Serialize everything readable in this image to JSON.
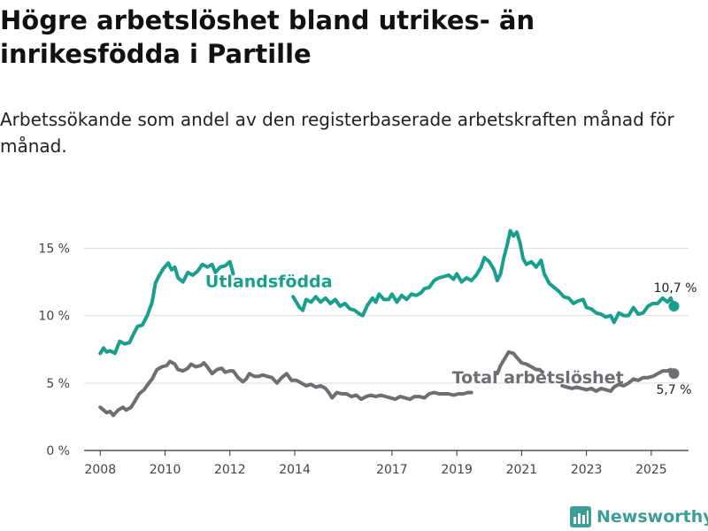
{
  "title": "Högre arbetslöshet bland utrikes- än inrikesfödda i Partille",
  "subtitle": "Arbetssökande som andel av den registerbaserade arbetskraften månad för månad.",
  "brand": {
    "name": "Newsworthy",
    "logo_icon": "bar-chart-logo-icon"
  },
  "colors": {
    "accent": "#1a9e8e",
    "secondary": "#6e6e73",
    "grid": "#dddddd",
    "axis": "#333333"
  },
  "chart_data": {
    "type": "line",
    "title": "Högre arbetslöshet bland utrikes- än inrikesfödda i Partille",
    "xlabel": "",
    "ylabel": "",
    "xlim": [
      2007.5,
      2026.15
    ],
    "ylim": [
      0,
      17
    ],
    "x_ticks": [
      2008,
      2010,
      2012,
      2014,
      2017,
      2019,
      2021,
      2023,
      2025
    ],
    "x_tick_labels": [
      "2008",
      "2010",
      "2012",
      "2014",
      "2017",
      "2019",
      "2021",
      "2023",
      "2025"
    ],
    "y_ticks": [
      0,
      5,
      10,
      15
    ],
    "y_tick_labels": [
      "0 %",
      "5 %",
      "10 %",
      "15 %"
    ],
    "series": [
      {
        "name": "Utlandsfödda",
        "color": "#1a9e8e",
        "end_label": "10,7 %",
        "segments": [
          [
            [
              2008.0,
              7.2
            ],
            [
              2008.1,
              7.6
            ],
            [
              2008.2,
              7.3
            ],
            [
              2008.3,
              7.4
            ],
            [
              2008.45,
              7.2
            ],
            [
              2008.6,
              8.1
            ],
            [
              2008.75,
              7.9
            ],
            [
              2008.9,
              8.0
            ],
            [
              2009.0,
              8.5
            ],
            [
              2009.15,
              9.2
            ],
            [
              2009.3,
              9.3
            ],
            [
              2009.45,
              10.0
            ],
            [
              2009.6,
              11.0
            ],
            [
              2009.7,
              12.4
            ],
            [
              2009.8,
              12.9
            ],
            [
              2009.95,
              13.5
            ],
            [
              2010.1,
              13.9
            ],
            [
              2010.2,
              13.4
            ],
            [
              2010.3,
              13.6
            ],
            [
              2010.4,
              12.8
            ],
            [
              2010.55,
              12.5
            ],
            [
              2010.7,
              13.2
            ],
            [
              2010.85,
              13.0
            ],
            [
              2011.0,
              13.3
            ],
            [
              2011.15,
              13.8
            ],
            [
              2011.3,
              13.6
            ],
            [
              2011.45,
              13.8
            ],
            [
              2011.55,
              13.2
            ],
            [
              2011.7,
              13.6
            ],
            [
              2011.85,
              13.7
            ],
            [
              2012.0,
              14.0
            ],
            [
              2012.1,
              13.1
            ]
          ],
          [
            [
              2013.95,
              11.4
            ],
            [
              2014.05,
              11.0
            ],
            [
              2014.15,
              10.6
            ],
            [
              2014.25,
              10.4
            ],
            [
              2014.35,
              11.2
            ],
            [
              2014.5,
              11.0
            ],
            [
              2014.65,
              11.4
            ],
            [
              2014.8,
              11.0
            ],
            [
              2014.95,
              11.3
            ],
            [
              2015.1,
              10.9
            ],
            [
              2015.25,
              11.2
            ],
            [
              2015.4,
              10.7
            ],
            [
              2015.55,
              10.9
            ],
            [
              2015.7,
              10.5
            ],
            [
              2015.85,
              10.4
            ],
            [
              2016.0,
              10.1
            ],
            [
              2016.1,
              10.0
            ],
            [
              2016.25,
              10.8
            ],
            [
              2016.4,
              11.3
            ],
            [
              2016.5,
              11.0
            ],
            [
              2016.6,
              11.6
            ],
            [
              2016.75,
              11.2
            ],
            [
              2016.9,
              11.2
            ],
            [
              2017.0,
              11.6
            ],
            [
              2017.15,
              11.0
            ],
            [
              2017.3,
              11.5
            ],
            [
              2017.45,
              11.2
            ],
            [
              2017.6,
              11.6
            ],
            [
              2017.75,
              11.5
            ],
            [
              2017.9,
              11.7
            ],
            [
              2018.0,
              12.0
            ],
            [
              2018.15,
              12.1
            ],
            [
              2018.3,
              12.6
            ],
            [
              2018.45,
              12.8
            ],
            [
              2018.6,
              12.9
            ],
            [
              2018.75,
              13.0
            ],
            [
              2018.9,
              12.7
            ],
            [
              2019.0,
              13.1
            ],
            [
              2019.15,
              12.5
            ],
            [
              2019.3,
              12.8
            ],
            [
              2019.45,
              12.6
            ],
            [
              2019.6,
              13.0
            ],
            [
              2019.75,
              13.6
            ],
            [
              2019.85,
              14.3
            ],
            [
              2020.0,
              14.0
            ],
            [
              2020.15,
              13.4
            ],
            [
              2020.25,
              12.6
            ],
            [
              2020.35,
              13.1
            ],
            [
              2020.45,
              14.3
            ],
            [
              2020.55,
              15.2
            ],
            [
              2020.65,
              16.3
            ],
            [
              2020.75,
              15.9
            ],
            [
              2020.85,
              16.2
            ],
            [
              2020.95,
              15.4
            ],
            [
              2021.05,
              14.2
            ],
            [
              2021.15,
              13.8
            ],
            [
              2021.3,
              14.0
            ],
            [
              2021.45,
              13.6
            ],
            [
              2021.6,
              14.1
            ],
            [
              2021.7,
              13.1
            ],
            [
              2021.85,
              12.4
            ],
            [
              2022.0,
              12.1
            ],
            [
              2022.15,
              11.8
            ],
            [
              2022.3,
              11.4
            ],
            [
              2022.45,
              11.3
            ],
            [
              2022.6,
              10.9
            ],
            [
              2022.75,
              11.1
            ],
            [
              2022.9,
              11.2
            ],
            [
              2023.0,
              10.6
            ],
            [
              2023.15,
              10.5
            ],
            [
              2023.3,
              10.2
            ],
            [
              2023.45,
              10.1
            ],
            [
              2023.6,
              9.9
            ],
            [
              2023.75,
              10.0
            ],
            [
              2023.85,
              9.5
            ],
            [
              2024.0,
              10.2
            ],
            [
              2024.15,
              10.0
            ],
            [
              2024.3,
              10.0
            ],
            [
              2024.45,
              10.6
            ],
            [
              2024.6,
              10.1
            ],
            [
              2024.75,
              10.2
            ],
            [
              2024.9,
              10.7
            ],
            [
              2025.05,
              10.9
            ],
            [
              2025.2,
              10.9
            ],
            [
              2025.35,
              11.3
            ],
            [
              2025.5,
              11.0
            ],
            [
              2025.6,
              11.3
            ],
            [
              2025.7,
              10.7
            ]
          ]
        ]
      },
      {
        "name": "Total arbetslöshet",
        "color": "#6e6e73",
        "end_label": "5,7 %",
        "segments": [
          [
            [
              2008.0,
              3.2
            ],
            [
              2008.1,
              3.0
            ],
            [
              2008.2,
              2.8
            ],
            [
              2008.3,
              2.9
            ],
            [
              2008.4,
              2.6
            ],
            [
              2008.55,
              3.0
            ],
            [
              2008.7,
              3.2
            ],
            [
              2008.8,
              3.0
            ],
            [
              2008.95,
              3.2
            ],
            [
              2009.05,
              3.6
            ],
            [
              2009.2,
              4.2
            ],
            [
              2009.35,
              4.5
            ],
            [
              2009.5,
              5.0
            ],
            [
              2009.6,
              5.3
            ],
            [
              2009.75,
              6.0
            ],
            [
              2009.9,
              6.2
            ],
            [
              2010.05,
              6.3
            ],
            [
              2010.15,
              6.6
            ],
            [
              2010.3,
              6.4
            ],
            [
              2010.4,
              6.0
            ],
            [
              2010.55,
              5.9
            ],
            [
              2010.7,
              6.1
            ],
            [
              2010.8,
              6.4
            ],
            [
              2010.95,
              6.2
            ],
            [
              2011.1,
              6.3
            ],
            [
              2011.2,
              6.5
            ],
            [
              2011.3,
              6.2
            ],
            [
              2011.45,
              5.7
            ],
            [
              2011.6,
              6.0
            ],
            [
              2011.75,
              6.1
            ],
            [
              2011.85,
              5.8
            ],
            [
              2012.0,
              5.9
            ],
            [
              2012.1,
              5.9
            ],
            [
              2012.25,
              5.4
            ],
            [
              2012.4,
              5.1
            ],
            [
              2012.5,
              5.3
            ],
            [
              2012.6,
              5.7
            ],
            [
              2012.75,
              5.5
            ],
            [
              2012.9,
              5.5
            ],
            [
              2013.0,
              5.6
            ],
            [
              2013.15,
              5.5
            ],
            [
              2013.3,
              5.4
            ],
            [
              2013.45,
              5.0
            ],
            [
              2013.6,
              5.4
            ],
            [
              2013.75,
              5.7
            ],
            [
              2013.9,
              5.2
            ],
            [
              2014.05,
              5.2
            ],
            [
              2014.2,
              5.0
            ],
            [
              2014.35,
              4.8
            ],
            [
              2014.5,
              4.9
            ],
            [
              2014.65,
              4.7
            ],
            [
              2014.8,
              4.8
            ],
            [
              2014.95,
              4.6
            ],
            [
              2015.05,
              4.3
            ],
            [
              2015.15,
              3.9
            ],
            [
              2015.3,
              4.3
            ],
            [
              2015.45,
              4.2
            ],
            [
              2015.6,
              4.2
            ],
            [
              2015.75,
              4.0
            ],
            [
              2015.9,
              4.1
            ],
            [
              2016.05,
              3.8
            ],
            [
              2016.2,
              4.0
            ],
            [
              2016.35,
              4.1
            ],
            [
              2016.5,
              4.0
            ],
            [
              2016.65,
              4.1
            ],
            [
              2016.8,
              4.0
            ],
            [
              2016.95,
              3.9
            ],
            [
              2017.1,
              3.8
            ],
            [
              2017.25,
              4.0
            ],
            [
              2017.4,
              3.9
            ],
            [
              2017.55,
              3.8
            ],
            [
              2017.7,
              4.0
            ],
            [
              2017.85,
              4.0
            ],
            [
              2018.0,
              3.9
            ],
            [
              2018.15,
              4.2
            ],
            [
              2018.3,
              4.3
            ],
            [
              2018.45,
              4.2
            ],
            [
              2018.6,
              4.2
            ],
            [
              2018.75,
              4.2
            ],
            [
              2018.9,
              4.1
            ],
            [
              2019.05,
              4.2
            ],
            [
              2019.2,
              4.2
            ],
            [
              2019.35,
              4.3
            ],
            [
              2019.45,
              4.3
            ]
          ],
          [
            [
              2020.25,
              5.7
            ],
            [
              2020.35,
              6.3
            ],
            [
              2020.5,
              6.9
            ],
            [
              2020.6,
              7.3
            ],
            [
              2020.75,
              7.2
            ],
            [
              2020.85,
              6.9
            ],
            [
              2021.0,
              6.5
            ],
            [
              2021.15,
              6.4
            ],
            [
              2021.3,
              6.2
            ],
            [
              2021.45,
              6.0
            ],
            [
              2021.55,
              6.0
            ],
            [
              2021.65,
              5.8
            ]
          ],
          [
            [
              2022.25,
              4.8
            ],
            [
              2022.4,
              4.7
            ],
            [
              2022.55,
              4.6
            ],
            [
              2022.7,
              4.7
            ],
            [
              2022.85,
              4.6
            ],
            [
              2023.0,
              4.5
            ],
            [
              2023.15,
              4.6
            ],
            [
              2023.3,
              4.4
            ],
            [
              2023.45,
              4.6
            ],
            [
              2023.6,
              4.5
            ],
            [
              2023.75,
              4.4
            ],
            [
              2023.85,
              4.7
            ],
            [
              2024.0,
              4.9
            ],
            [
              2024.15,
              4.8
            ],
            [
              2024.3,
              5.0
            ],
            [
              2024.45,
              5.3
            ],
            [
              2024.6,
              5.2
            ],
            [
              2024.75,
              5.4
            ],
            [
              2024.9,
              5.4
            ],
            [
              2025.05,
              5.5
            ],
            [
              2025.2,
              5.7
            ],
            [
              2025.35,
              5.9
            ],
            [
              2025.5,
              5.9
            ],
            [
              2025.6,
              6.0
            ],
            [
              2025.7,
              5.7
            ]
          ]
        ]
      }
    ],
    "annotations": [
      {
        "text": "Utlandsfödda",
        "series": "Utlandsfödda",
        "x": 2013.2,
        "y": 12.1
      },
      {
        "text": "Total arbetslöshet",
        "series": "Total arbetslöshet",
        "x": 2021.5,
        "y": 5.0
      }
    ]
  }
}
